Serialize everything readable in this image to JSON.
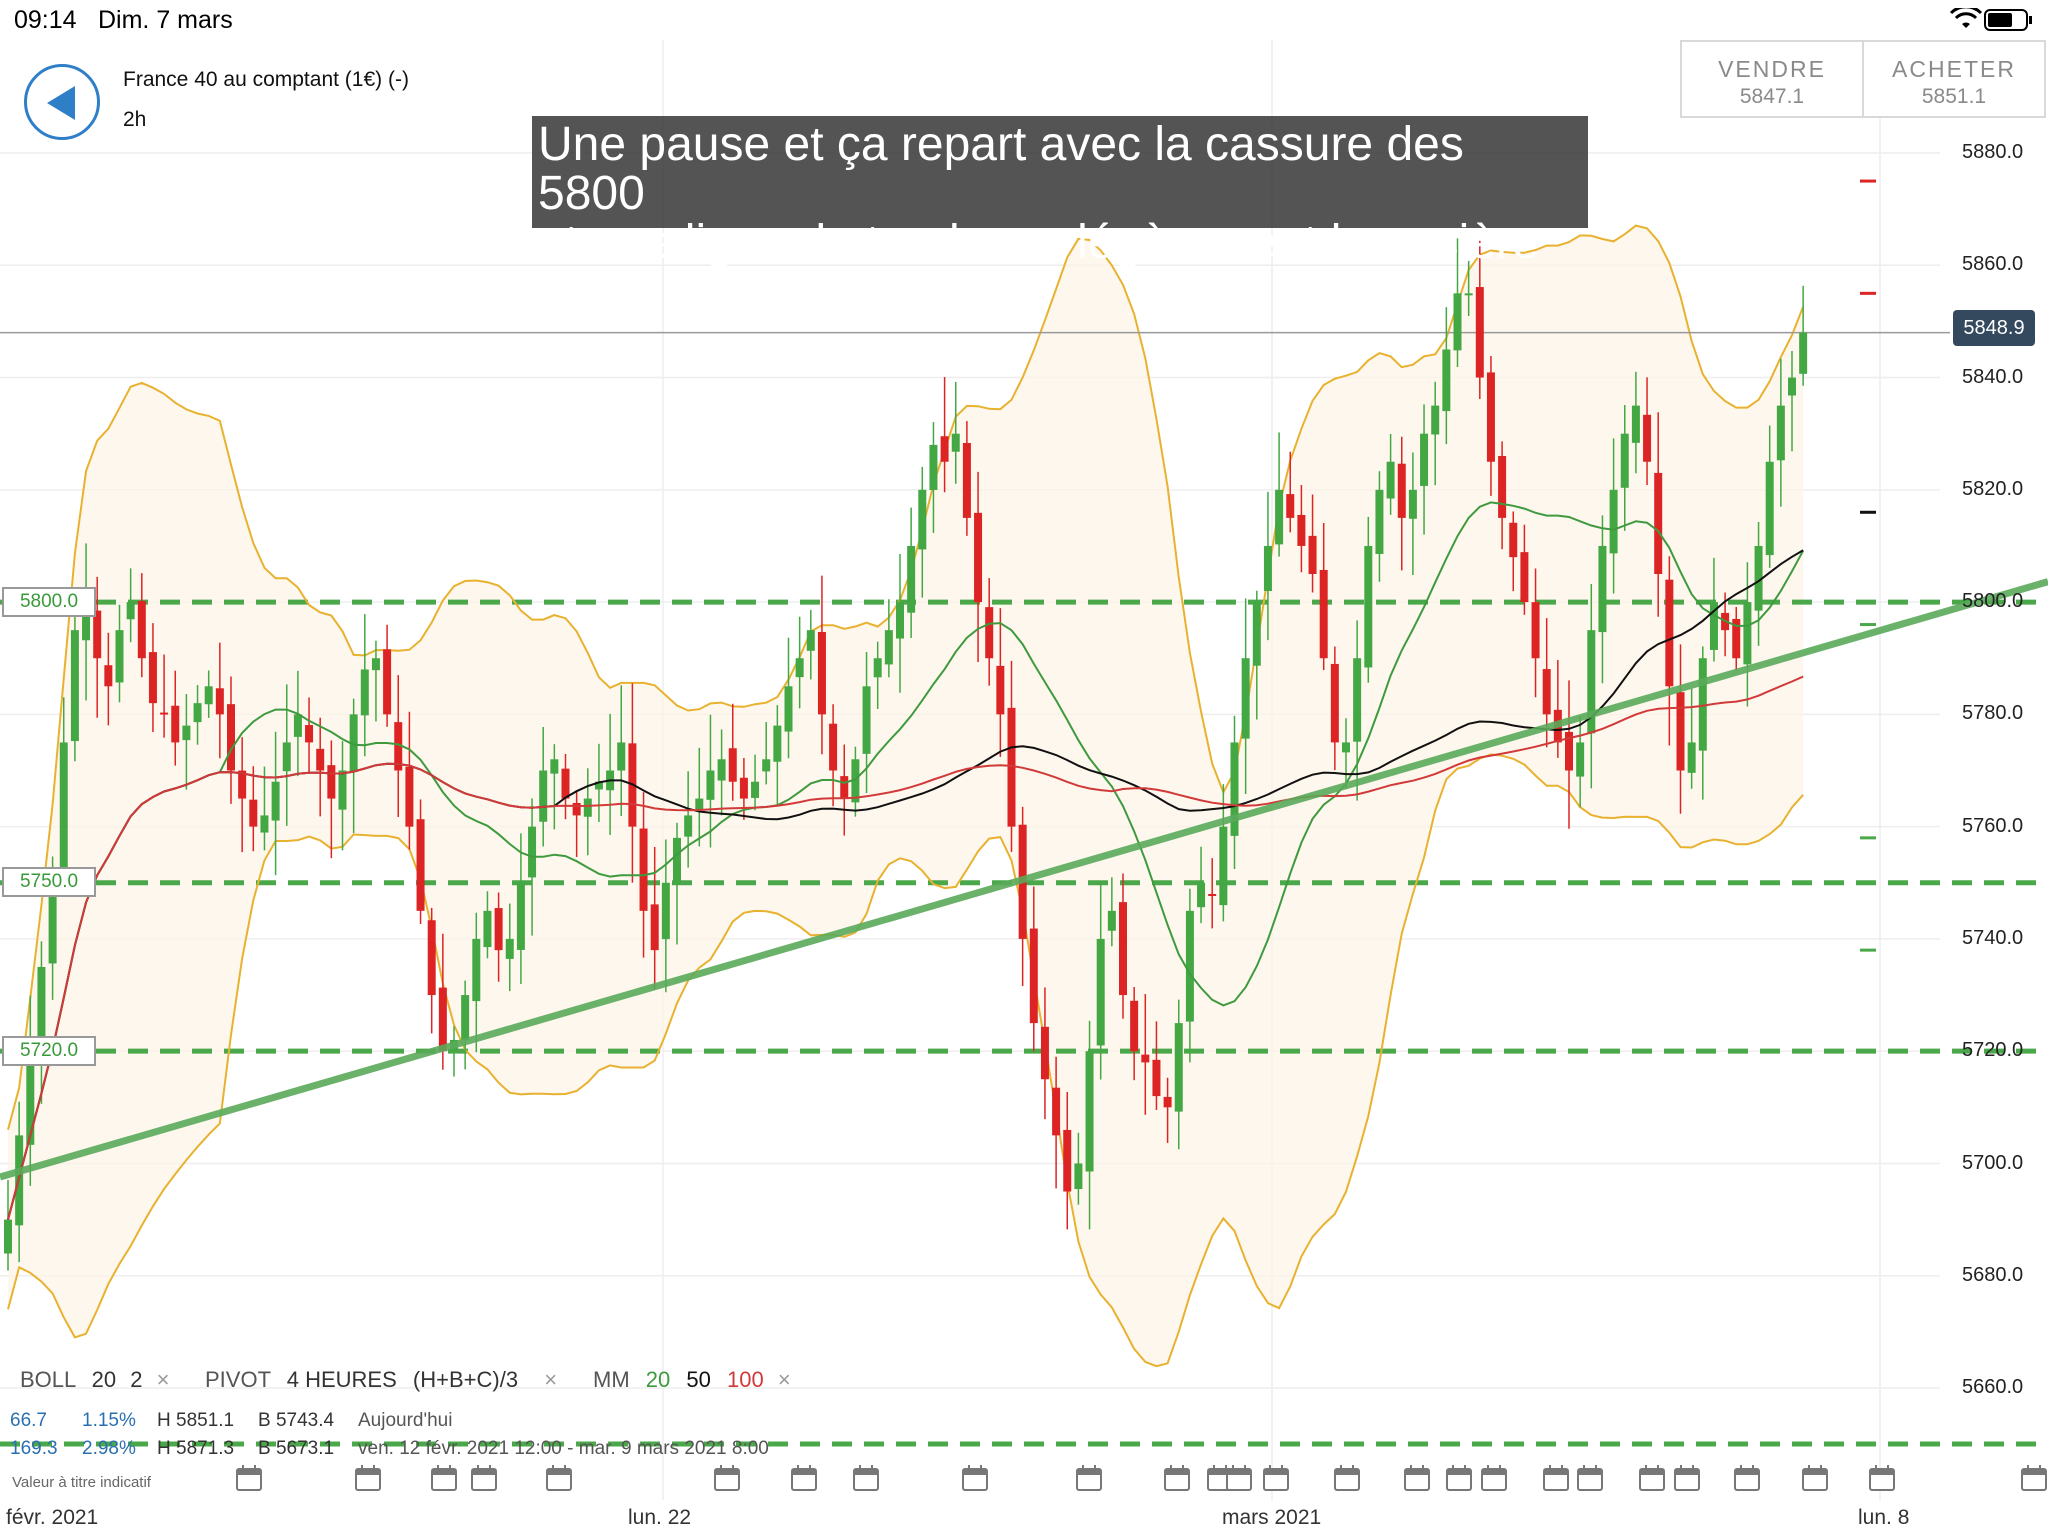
{
  "status_bar": {
    "time": "09:14",
    "date": "Dim. 7 mars"
  },
  "header": {
    "instrument": "France 40 au comptant (1€) (-)",
    "timeframe": "2h"
  },
  "trade": {
    "sell": {
      "label": "VENDRE",
      "price": "5847.1"
    },
    "buy": {
      "label": "ACHETER",
      "price": "5851.1"
    }
  },
  "annotation": {
    "line1": "Une pause et ça repart avec la cassure des 5800",
    "line2": "et une ligne de tendance légèrement haussière"
  },
  "price_now": "5848.9",
  "levels": [
    {
      "label": "5800.0",
      "value": 5800
    },
    {
      "label": "5750.0",
      "value": 5750
    },
    {
      "label": "5720.0",
      "value": 5720
    }
  ],
  "y_ticks": [
    "5880.0",
    "5860.0",
    "5840.0",
    "5820.0",
    "5800.0",
    "5780.0",
    "5760.0",
    "5740.0",
    "5720.0",
    "5700.0",
    "5680.0",
    "5660.0"
  ],
  "x_ticks": [
    {
      "label": "févr. 2021"
    },
    {
      "label": "lun. 22"
    },
    {
      "label": "mars 2021"
    },
    {
      "label": "lun. 8"
    }
  ],
  "legend": {
    "boll": {
      "name": "BOLL",
      "p1": "20",
      "p2": "2"
    },
    "pivot": {
      "name": "PIVOT",
      "p1": "4 HEURES",
      "p2": "(H+B+C)/3"
    },
    "mm": {
      "name": "MM",
      "p1": "20",
      "p2": "50",
      "p3": "100"
    },
    "close_icon": "×"
  },
  "stats": {
    "row1": {
      "a": "66.7",
      "b": "1.15%",
      "h": "H 5851.1",
      "l": "B 5743.4",
      "period": "Aujourd'hui"
    },
    "row2": {
      "a": "169.3",
      "b": "2.98%",
      "h": "H 5871.3",
      "l": "B 5673.1",
      "period": "ven. 12 févr. 2021 12:00 - mar. 9 mars 2021 8:00"
    },
    "note": "Valeur à titre indicatif"
  },
  "colors": {
    "up": "#43a843",
    "down": "#dd2424",
    "boll": "#e8b230",
    "ma20": "#3f9a3f",
    "ma50": "#111111",
    "ma100": "#d23a3a",
    "level": "#4aa84a",
    "trend": "#5aaa5a",
    "accent": "#2f7fc8"
  },
  "chart_data": {
    "type": "candlestick",
    "ylim": [
      5650,
      5885
    ],
    "levels": [
      5800,
      5750,
      5720
    ],
    "trendline": {
      "from_index": 0,
      "from_value": 5698,
      "to_index": 168,
      "to_value": 5795
    },
    "close": [
      5690,
      5705,
      5720,
      5735,
      5752,
      5775,
      5795,
      5800,
      5790,
      5785,
      5795,
      5800,
      5790,
      5782,
      5780,
      5775,
      5778,
      5782,
      5785,
      5780,
      5770,
      5765,
      5760,
      5762,
      5768,
      5775,
      5780,
      5775,
      5770,
      5765,
      5770,
      5780,
      5788,
      5790,
      5780,
      5770,
      5760,
      5745,
      5730,
      5720,
      5722,
      5730,
      5740,
      5745,
      5738,
      5740,
      5750,
      5760,
      5770,
      5772,
      5765,
      5762,
      5765,
      5768,
      5770,
      5775,
      5760,
      5745,
      5738,
      5750,
      5758,
      5762,
      5765,
      5770,
      5772,
      5768,
      5765,
      5768,
      5772,
      5778,
      5785,
      5790,
      5795,
      5780,
      5770,
      5765,
      5772,
      5785,
      5790,
      5795,
      5800,
      5810,
      5820,
      5828,
      5825,
      5830,
      5815,
      5800,
      5790,
      5780,
      5760,
      5740,
      5725,
      5715,
      5705,
      5695,
      5700,
      5720,
      5740,
      5745,
      5730,
      5720,
      5718,
      5712,
      5710,
      5725,
      5745,
      5750,
      5748,
      5760,
      5775,
      5790,
      5800,
      5810,
      5820,
      5815,
      5810,
      5805,
      5790,
      5775,
      5775,
      5790,
      5810,
      5820,
      5825,
      5815,
      5820,
      5830,
      5835,
      5845,
      5855,
      5855,
      5840,
      5825,
      5815,
      5808,
      5800,
      5790,
      5780,
      5775,
      5770,
      5775,
      5795,
      5810,
      5820,
      5830,
      5835,
      5825,
      5805,
      5785,
      5770,
      5775,
      5790,
      5800,
      5795,
      5790,
      5800,
      5810,
      5825,
      5835,
      5840,
      5848
    ],
    "series": [
      {
        "name": "BOLL"
      },
      {
        "name": "MM 20"
      },
      {
        "name": "MM 50"
      },
      {
        "name": "MM 100"
      }
    ]
  }
}
